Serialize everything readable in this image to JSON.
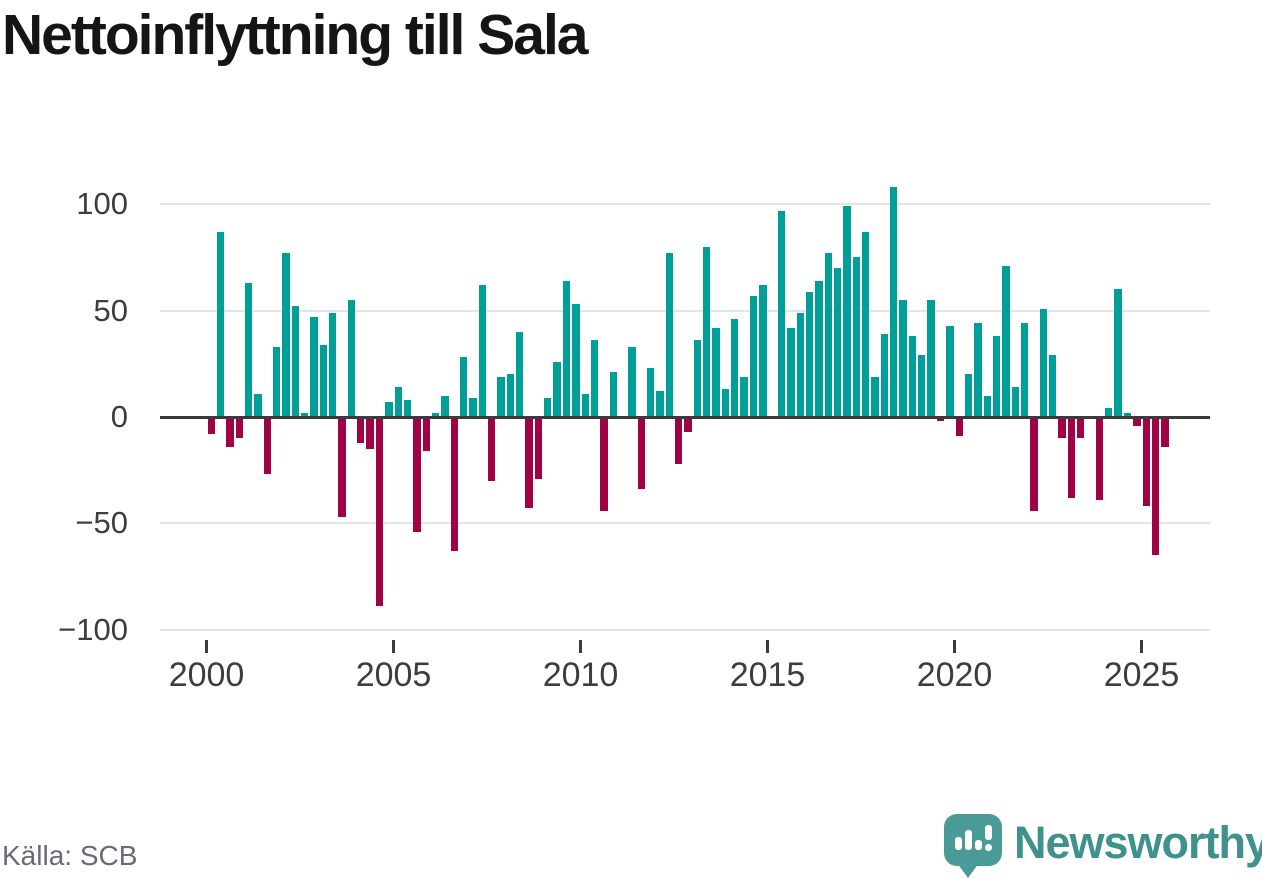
{
  "title": "Nettoinflyttning till Sala",
  "source": "Källa: SCB",
  "branding": {
    "wordmark": "Newsworthy",
    "icon": "newsworthy-speech-bubble-bar-chart-icon",
    "icon_color": "#4a9b98",
    "wordmark_color": "#3f918e"
  },
  "colors": {
    "positive_bar": "#00a099",
    "negative_bar": "#a00245",
    "gridline": "#e4e4e4",
    "zero_line": "#3b3b3b",
    "axis_text": "#3d3d3d",
    "title_text": "#151515",
    "source_text": "#6a6a73",
    "background": "#ffffff"
  },
  "chart_data": {
    "type": "bar",
    "title": "Nettoinflyttning till Sala",
    "xlabel": "",
    "ylabel": "",
    "x_unit": "quarter",
    "start_period": "2000Q1",
    "end_period": "2025Q3",
    "ylim": [
      -100,
      110
    ],
    "grid": true,
    "legend": false,
    "y_ticks": [
      100,
      50,
      0,
      -50,
      -100
    ],
    "y_tick_labels": [
      "100",
      "50",
      "0",
      "−50",
      "−100"
    ],
    "x_ticks": [
      2000,
      2005,
      2010,
      2015,
      2020,
      2025
    ],
    "x_tick_labels": [
      "2000",
      "2005",
      "2010",
      "2015",
      "2020",
      "2025"
    ],
    "series_by_year": [
      {
        "year": 2000,
        "values": [
          -8,
          87,
          -14,
          -10
        ]
      },
      {
        "year": 2001,
        "values": [
          63,
          11,
          -27,
          33
        ]
      },
      {
        "year": 2002,
        "values": [
          77,
          52,
          2,
          47
        ]
      },
      {
        "year": 2003,
        "values": [
          34,
          49,
          -47,
          55
        ]
      },
      {
        "year": 2004,
        "values": [
          -12,
          -15,
          -89,
          7
        ]
      },
      {
        "year": 2005,
        "values": [
          14,
          8,
          -54,
          -16
        ]
      },
      {
        "year": 2006,
        "values": [
          2,
          10,
          -63,
          28
        ]
      },
      {
        "year": 2007,
        "values": [
          9,
          62,
          -30,
          19
        ]
      },
      {
        "year": 2008,
        "values": [
          20,
          40,
          -43,
          -29
        ]
      },
      {
        "year": 2009,
        "values": [
          9,
          26,
          64,
          53
        ]
      },
      {
        "year": 2010,
        "values": [
          11,
          36,
          -44,
          21
        ]
      },
      {
        "year": 2011,
        "values": [
          0,
          33,
          -34,
          23
        ]
      },
      {
        "year": 2012,
        "values": [
          12,
          77,
          -22,
          -7
        ]
      },
      {
        "year": 2013,
        "values": [
          36,
          80,
          42,
          13
        ]
      },
      {
        "year": 2014,
        "values": [
          46,
          19,
          57,
          62
        ]
      },
      {
        "year": 2015,
        "values": [
          0,
          97,
          42,
          49
        ]
      },
      {
        "year": 2016,
        "values": [
          59,
          64,
          77,
          70
        ]
      },
      {
        "year": 2017,
        "values": [
          99,
          75,
          87,
          19
        ]
      },
      {
        "year": 2018,
        "values": [
          39,
          108,
          55,
          38
        ]
      },
      {
        "year": 2019,
        "values": [
          29,
          55,
          -2,
          43
        ]
      },
      {
        "year": 2020,
        "values": [
          -9,
          20,
          44,
          10
        ]
      },
      {
        "year": 2021,
        "values": [
          38,
          71,
          14,
          44
        ]
      },
      {
        "year": 2022,
        "values": [
          -44,
          51,
          29,
          -10
        ]
      },
      {
        "year": 2023,
        "values": [
          -38,
          -10,
          0,
          -39
        ]
      },
      {
        "year": 2024,
        "values": [
          4,
          60,
          2,
          -4
        ]
      },
      {
        "year": 2025,
        "values": [
          -42,
          -65,
          -14
        ]
      }
    ]
  }
}
